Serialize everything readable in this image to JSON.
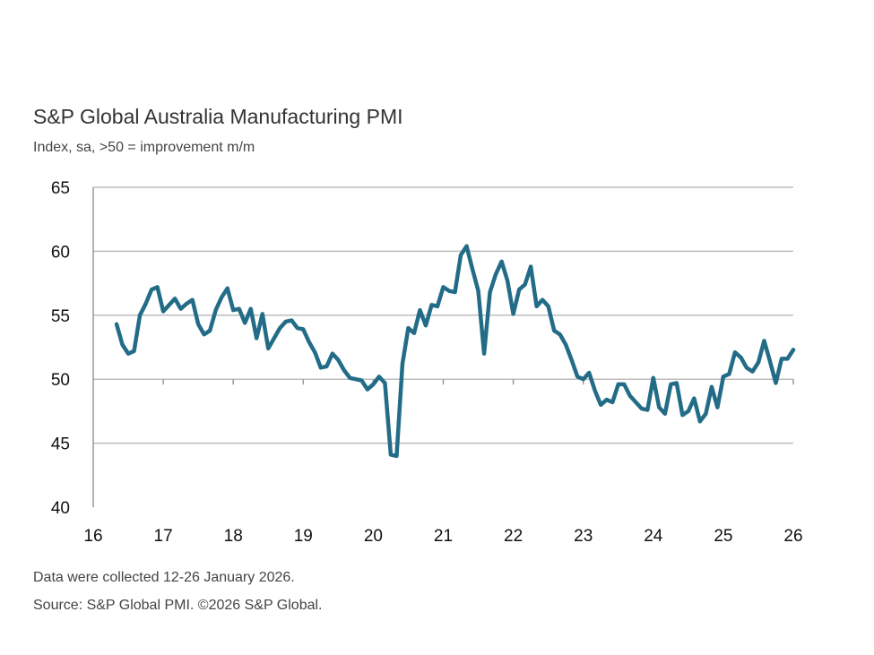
{
  "chart_data": {
    "type": "line",
    "title": "S&P Global Australia Manufacturing PMI",
    "subtitle": "Index, sa, >50 = improvement m/m",
    "xlabel": "",
    "ylabel": "",
    "ylim": [
      40,
      65
    ],
    "xlim": [
      16,
      26
    ],
    "yticks": [
      40,
      45,
      50,
      55,
      60,
      65
    ],
    "xticks": [
      "16",
      "17",
      "18",
      "19",
      "20",
      "21",
      "22",
      "23",
      "24",
      "25",
      "26"
    ],
    "grid": "horizontal",
    "color": "#236c87",
    "start": "2016-05",
    "frequency": "monthly",
    "values": [
      54.3,
      52.7,
      52.0,
      52.2,
      55.0,
      55.9,
      57.0,
      57.2,
      55.3,
      55.8,
      56.3,
      55.5,
      55.9,
      56.2,
      54.3,
      53.5,
      53.8,
      55.4,
      56.4,
      57.1,
      55.4,
      55.5,
      54.4,
      55.5,
      53.2,
      55.1,
      52.4,
      53.2,
      54.0,
      54.5,
      54.6,
      54.0,
      53.9,
      52.9,
      52.1,
      50.9,
      51.0,
      52.0,
      51.5,
      50.7,
      50.1,
      50.0,
      49.9,
      49.2,
      49.6,
      50.2,
      49.7,
      44.1,
      44.0,
      51.2,
      54.0,
      53.6,
      55.4,
      54.2,
      55.8,
      55.7,
      57.2,
      56.9,
      56.8,
      59.7,
      60.4,
      58.6,
      56.9,
      52.0,
      56.8,
      58.2,
      59.2,
      57.7,
      55.1,
      57.0,
      57.4,
      58.8,
      55.7,
      56.2,
      55.7,
      53.8,
      53.5,
      52.7,
      51.5,
      50.2,
      50.0,
      50.5,
      49.1,
      48.0,
      48.4,
      48.2,
      49.6,
      49.6,
      48.7,
      48.2,
      47.7,
      47.6,
      50.1,
      47.8,
      47.3,
      49.6,
      49.7,
      47.2,
      47.5,
      48.5,
      46.7,
      47.3,
      49.4,
      47.8,
      50.2,
      50.4,
      52.1,
      51.7,
      50.9,
      50.6,
      51.3,
      53.0,
      51.4,
      49.7,
      51.6,
      51.6,
      52.3
    ]
  },
  "footer": {
    "note": "Data were collected 12-26 January 2026.",
    "source": "Source: S&P Global PMI. ©2026 S&P Global."
  }
}
